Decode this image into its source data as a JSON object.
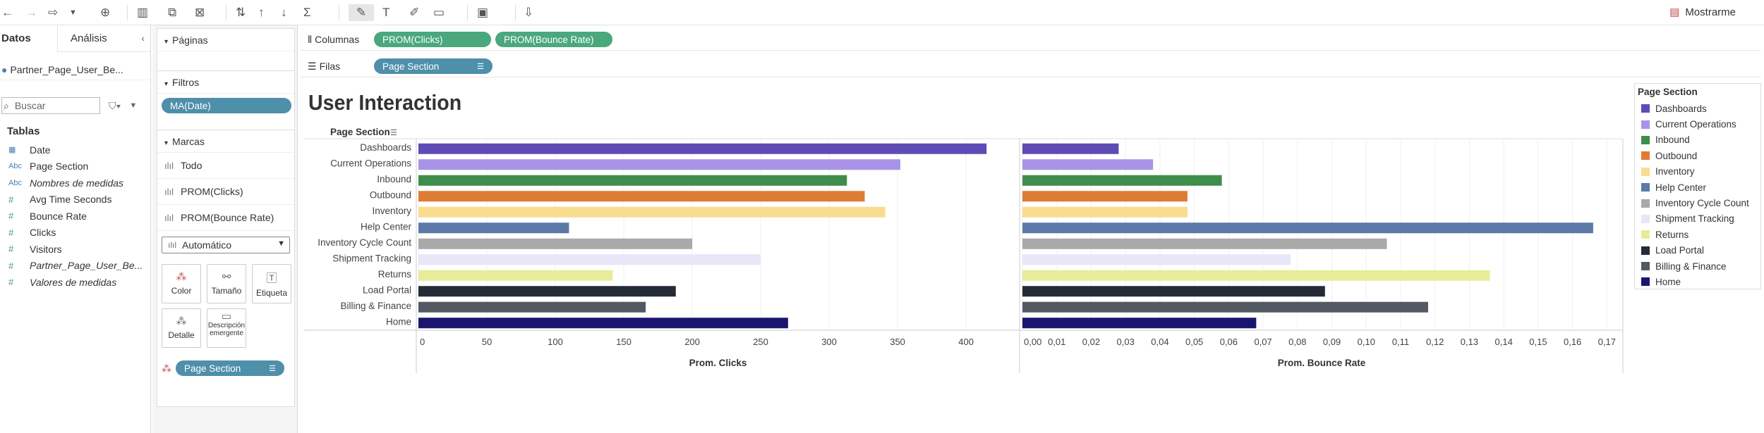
{
  "toolbar": {
    "show_me": "Mostrarme"
  },
  "data_pane": {
    "tab_data": "Datos",
    "tab_analysis": "Análisis",
    "datasource": "Partner_Page_User_Be...",
    "search_placeholder": "Buscar",
    "tables_heading": "Tablas",
    "fields": [
      {
        "icon": "calendar",
        "label": "Date",
        "italic": false
      },
      {
        "icon": "Abc",
        "label": "Page Section",
        "italic": false
      },
      {
        "icon": "Abc",
        "label": "Nombres de medidas",
        "italic": true
      },
      {
        "icon": "#",
        "label": "Avg Time Seconds",
        "italic": false
      },
      {
        "icon": "#",
        "label": "Bounce Rate",
        "italic": false
      },
      {
        "icon": "#",
        "label": "Clicks",
        "italic": false
      },
      {
        "icon": "#",
        "label": "Visitors",
        "italic": false
      },
      {
        "icon": "#",
        "label": "Partner_Page_User_Be...",
        "italic": true
      },
      {
        "icon": "#",
        "label": "Valores de medidas",
        "italic": true
      }
    ]
  },
  "cards": {
    "pages": "Páginas",
    "filters": "Filtros",
    "filter_pill": "MA(Date)",
    "marks": "Marcas",
    "mark_rows": [
      "Todo",
      "PROM(Clicks)",
      "PROM(Bounce Rate)"
    ],
    "mark_type": "Automático",
    "buttons": {
      "color": "Color",
      "size": "Tamaño",
      "label": "Etiqueta",
      "detail": "Detalle",
      "tooltip": "Descripción emergente"
    },
    "color_pill": "Page Section"
  },
  "shelves": {
    "columns_label": "Columnas",
    "columns": [
      "PROM(Clicks)",
      "PROM(Bounce Rate)"
    ],
    "rows_label": "Filas",
    "rows": [
      "Page Section"
    ]
  },
  "view": {
    "title": "User Interaction",
    "row_header": "Page Section"
  },
  "legend": {
    "title": "Page Section"
  },
  "chart_data": {
    "type": "bar",
    "orientation": "horizontal",
    "categories": [
      "Dashboards",
      "Current Operations",
      "Inbound",
      "Outbound",
      "Inventory",
      "Help Center",
      "Inventory Cycle Count",
      "Shipment Tracking",
      "Returns",
      "Load Portal",
      "Billing & Finance",
      "Home"
    ],
    "colors": [
      "#5e4bb5",
      "#a993e8",
      "#3f8d4a",
      "#e07b34",
      "#f8dc8f",
      "#5b79a8",
      "#a9a9a9",
      "#e8e6f8",
      "#e8ec98",
      "#252b36",
      "#535963",
      "#1a1670"
    ],
    "series": [
      {
        "name": "Prom. Clicks",
        "values": [
          415,
          352,
          313,
          326,
          341,
          110,
          200,
          250,
          142,
          188,
          166,
          270
        ],
        "xlim": [
          0,
          435
        ],
        "ticks": [
          "0",
          "50",
          "100",
          "150",
          "200",
          "250",
          "300",
          "350",
          "400"
        ],
        "tick_values": [
          0,
          50,
          100,
          150,
          200,
          250,
          300,
          350,
          400
        ],
        "xlabel": "Prom. Clicks"
      },
      {
        "name": "Prom. Bounce Rate",
        "values": [
          0.028,
          0.038,
          0.058,
          0.048,
          0.048,
          0.166,
          0.106,
          0.078,
          0.136,
          0.088,
          0.118,
          0.068
        ],
        "xlim": [
          0,
          0.173
        ],
        "ticks": [
          "0,00",
          "0,01",
          "0,02",
          "0,03",
          "0,04",
          "0,05",
          "0,06",
          "0,07",
          "0,08",
          "0,09",
          "0,10",
          "0,11",
          "0,12",
          "0,13",
          "0,14",
          "0,15",
          "0,16",
          "0,17"
        ],
        "tick_values": [
          0,
          0.01,
          0.02,
          0.03,
          0.04,
          0.05,
          0.06,
          0.07,
          0.08,
          0.09,
          0.1,
          0.11,
          0.12,
          0.13,
          0.14,
          0.15,
          0.16,
          0.17
        ],
        "xlabel": "Prom. Bounce Rate"
      }
    ]
  }
}
